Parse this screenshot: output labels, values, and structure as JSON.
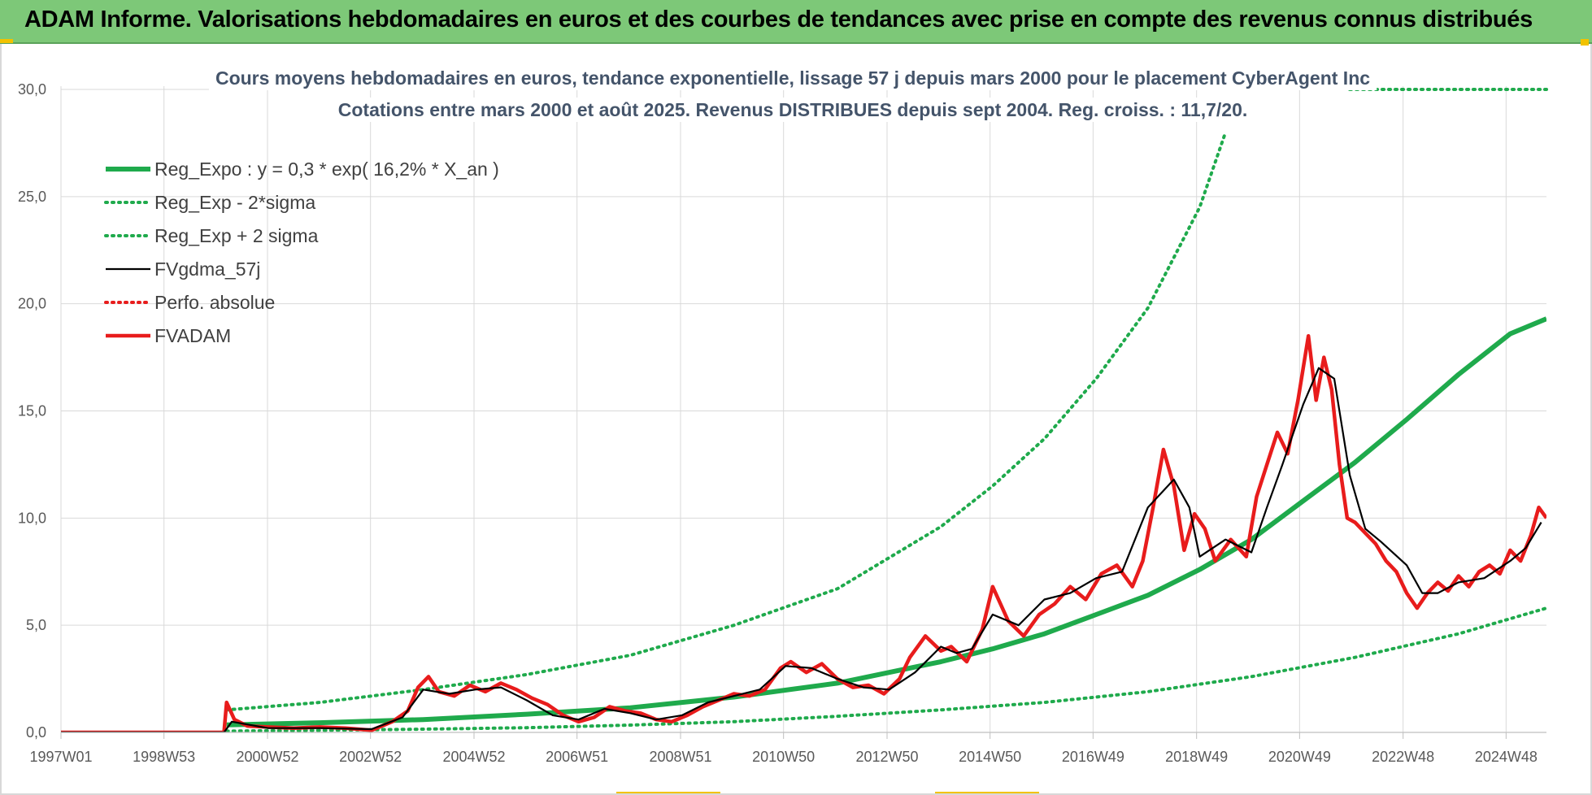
{
  "banner": {
    "title": "ADAM Informe. Valorisations hebdomadaires en euros et des courbes de tendances avec prise en compte des revenus connus distribués"
  },
  "chart_data": {
    "type": "line",
    "title": "Cours moyens hebdomadaires en euros, tendance exponentielle, lissage 57 j depuis mars 2000 pour le placement CyberAgent Inc",
    "subtitle": "Cotations entre mars 2000 et août 2025. Revenus DISTRIBUES depuis sept 2004. Reg. croiss. : 11,7/20.",
    "xlabel": "",
    "ylabel": "",
    "ylim": [
      0,
      30
    ],
    "yticks": [
      "0,0",
      "5,0",
      "10,0",
      "15,0",
      "20,0",
      "25,0",
      "30,0"
    ],
    "xlim": [
      1997.0,
      2025.7
    ],
    "xticks": [
      {
        "label": "1997W01",
        "x": 1997.0
      },
      {
        "label": "1998W53",
        "x": 1998.99
      },
      {
        "label": "2000W52",
        "x": 2000.99
      },
      {
        "label": "2002W52",
        "x": 2002.98
      },
      {
        "label": "2004W52",
        "x": 2004.98
      },
      {
        "label": "2006W51",
        "x": 2006.97
      },
      {
        "label": "2008W51",
        "x": 2008.97
      },
      {
        "label": "2010W50",
        "x": 2010.96
      },
      {
        "label": "2012W50",
        "x": 2012.96
      },
      {
        "label": "2014W50",
        "x": 2014.95
      },
      {
        "label": "2016W49",
        "x": 2016.94
      },
      {
        "label": "2018W49",
        "x": 2018.94
      },
      {
        "label": "2020W49",
        "x": 2020.93
      },
      {
        "label": "2022W48",
        "x": 2022.93
      },
      {
        "label": "2024W48",
        "x": 2024.92
      }
    ],
    "grid": true,
    "legend_position": "top-left",
    "series": [
      {
        "name": "Reg_Expo : y = 0,3 * exp( 16,2% *  X_an )",
        "color": "#1faa4c",
        "style": "solid-thick",
        "x": [
          2000.2,
          2002,
          2004,
          2006,
          2008,
          2010,
          2012,
          2014,
          2015,
          2016,
          2017,
          2018,
          2019,
          2020,
          2021,
          2022,
          2023,
          2024,
          2025,
          2025.7
        ],
        "y": [
          0.35,
          0.45,
          0.6,
          0.85,
          1.15,
          1.65,
          2.3,
          3.3,
          3.9,
          4.6,
          5.5,
          6.4,
          7.6,
          9.0,
          10.8,
          12.6,
          14.6,
          16.7,
          18.6,
          19.3
        ]
      },
      {
        "name": "Reg_Exp - 2*sigma",
        "color": "#1faa4c",
        "style": "dotted",
        "x": [
          2000.2,
          2002,
          2004,
          2006,
          2008,
          2010,
          2012,
          2014,
          2016,
          2018,
          2020,
          2022,
          2024,
          2025.7
        ],
        "y": [
          0.06,
          0.1,
          0.15,
          0.22,
          0.34,
          0.5,
          0.75,
          1.05,
          1.4,
          1.9,
          2.6,
          3.5,
          4.6,
          5.8
        ]
      },
      {
        "name": "Reg_Exp + 2 sigma",
        "color": "#1faa4c",
        "style": "dotted",
        "x": [
          2000.2,
          2002,
          2004,
          2006,
          2008,
          2010,
          2012,
          2014,
          2015,
          2016,
          2017,
          2018,
          2019,
          2019.5
        ],
        "y": [
          1.05,
          1.4,
          2.0,
          2.7,
          3.6,
          5.0,
          6.7,
          9.6,
          11.5,
          13.7,
          16.5,
          19.8,
          24.5,
          28.0
        ]
      },
      {
        "name": "FVgdma_57j",
        "color": "#000000",
        "style": "solid",
        "x": [
          1997.0,
          2000.15,
          2000.3,
          2001,
          2002,
          2003,
          2003.6,
          2004,
          2004.5,
          2005,
          2005.5,
          2006,
          2006.5,
          2007,
          2007.5,
          2008,
          2008.5,
          2009,
          2009.5,
          2010,
          2010.5,
          2011,
          2011.5,
          2012,
          2012.5,
          2013,
          2013.5,
          2014,
          2014.3,
          2014.6,
          2015,
          2015.5,
          2016,
          2016.5,
          2017,
          2017.5,
          2018,
          2018.5,
          2018.8,
          2019,
          2019.5,
          2020,
          2020.3,
          2020.6,
          2021,
          2021.3,
          2021.6,
          2021.9,
          2022.2,
          2022.5,
          2023,
          2023.3,
          2023.6,
          2024,
          2024.5,
          2025,
          2025.3,
          2025.6
        ],
        "y": [
          0,
          0,
          0.5,
          0.2,
          0.2,
          0.15,
          0.7,
          2.0,
          1.8,
          2.0,
          2.1,
          1.5,
          0.8,
          0.6,
          1.1,
          0.9,
          0.6,
          0.8,
          1.4,
          1.7,
          2.0,
          3.1,
          3.0,
          2.5,
          2.1,
          2.0,
          2.8,
          4.0,
          3.7,
          3.9,
          5.5,
          5.0,
          6.2,
          6.5,
          7.2,
          7.5,
          10.5,
          11.8,
          10.5,
          8.2,
          9.0,
          8.4,
          10.5,
          12.5,
          15.3,
          17.0,
          16.5,
          12.0,
          9.5,
          8.9,
          7.8,
          6.5,
          6.5,
          7.0,
          7.2,
          8.0,
          8.6,
          9.8
        ]
      },
      {
        "name": "Perfo. absolue",
        "color": "#e81c1c",
        "style": "dotted",
        "x": [],
        "y": []
      },
      {
        "name": "FVADAM",
        "color": "#e81c1c",
        "style": "solid-thick",
        "x": [
          1997.0,
          2000.15,
          2000.2,
          2000.35,
          2000.6,
          2001,
          2001.5,
          2002,
          2002.5,
          2003,
          2003.4,
          2003.7,
          2003.9,
          2004.1,
          2004.3,
          2004.6,
          2004.9,
          2005.2,
          2005.5,
          2005.8,
          2006.1,
          2006.4,
          2006.7,
          2007.0,
          2007.3,
          2007.6,
          2007.9,
          2008.2,
          2008.5,
          2008.8,
          2009.1,
          2009.4,
          2009.7,
          2010.0,
          2010.3,
          2010.6,
          2010.9,
          2011.1,
          2011.4,
          2011.7,
          2012.0,
          2012.3,
          2012.6,
          2012.9,
          2013.2,
          2013.4,
          2013.7,
          2014.0,
          2014.2,
          2014.5,
          2014.8,
          2015.0,
          2015.3,
          2015.6,
          2015.9,
          2016.2,
          2016.5,
          2016.8,
          2017.1,
          2017.4,
          2017.7,
          2017.9,
          2018.1,
          2018.3,
          2018.5,
          2018.7,
          2018.9,
          2019.1,
          2019.3,
          2019.6,
          2019.9,
          2020.1,
          2020.3,
          2020.5,
          2020.7,
          2020.9,
          2021.0,
          2021.1,
          2021.25,
          2021.4,
          2021.55,
          2021.7,
          2021.85,
          2022.0,
          2022.2,
          2022.4,
          2022.6,
          2022.8,
          2023.0,
          2023.2,
          2023.4,
          2023.6,
          2023.8,
          2024.0,
          2024.2,
          2024.4,
          2024.6,
          2024.8,
          2025.0,
          2025.2,
          2025.4,
          2025.55,
          2025.7
        ],
        "y": [
          0,
          0,
          1.4,
          0.6,
          0.3,
          0.25,
          0.2,
          0.25,
          0.2,
          0.1,
          0.5,
          1.0,
          2.1,
          2.6,
          1.9,
          1.7,
          2.2,
          1.9,
          2.3,
          2.0,
          1.6,
          1.3,
          0.8,
          0.5,
          0.7,
          1.2,
          1.0,
          0.9,
          0.6,
          0.5,
          0.8,
          1.2,
          1.5,
          1.8,
          1.7,
          2.0,
          3.0,
          3.3,
          2.8,
          3.2,
          2.5,
          2.1,
          2.2,
          1.8,
          2.5,
          3.5,
          4.5,
          3.8,
          4.0,
          3.3,
          4.8,
          6.8,
          5.2,
          4.5,
          5.5,
          6.0,
          6.8,
          6.2,
          7.4,
          7.8,
          6.8,
          8.0,
          10.5,
          13.2,
          11.5,
          8.5,
          10.2,
          9.5,
          8.0,
          9.0,
          8.2,
          11.0,
          12.5,
          14.0,
          13.0,
          15.5,
          17.0,
          18.5,
          15.5,
          17.5,
          16.0,
          12.5,
          10.0,
          9.8,
          9.3,
          8.8,
          8.0,
          7.5,
          6.5,
          5.8,
          6.5,
          7.0,
          6.6,
          7.3,
          6.8,
          7.5,
          7.8,
          7.4,
          8.5,
          8.0,
          9.2,
          10.5,
          10.0
        ]
      }
    ]
  }
}
